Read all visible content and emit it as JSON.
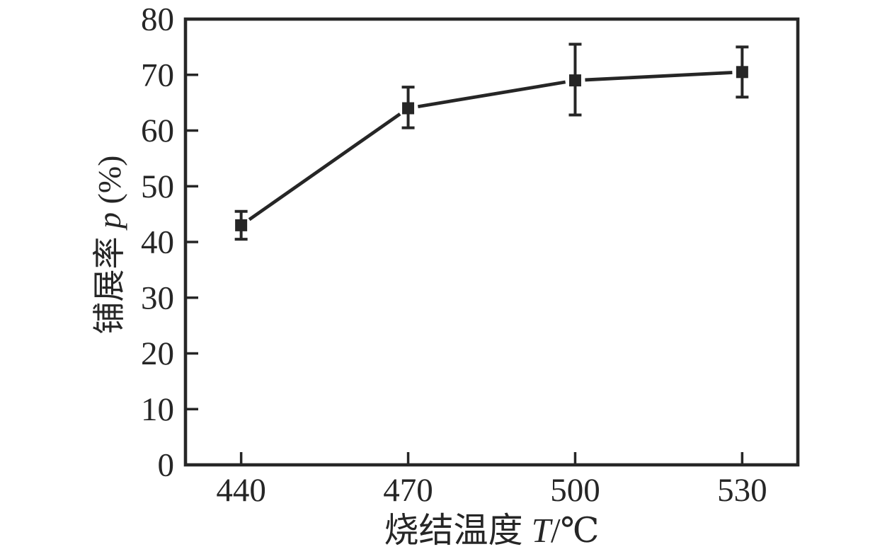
{
  "figure": {
    "background_color": "#ffffff",
    "ink_color": "#262626"
  },
  "chart_data": {
    "type": "line",
    "title": "",
    "xlabel": "烧结温度 T/℃",
    "xlabel_parts": [
      {
        "text": "烧结温度 ",
        "italic": false
      },
      {
        "text": "T",
        "italic": true
      },
      {
        "text": "/℃",
        "italic": false
      }
    ],
    "ylabel": "铺展率 p (%)",
    "ylabel_parts": [
      {
        "text": "铺展率 ",
        "italic": false
      },
      {
        "text": "p",
        "italic": true
      },
      {
        "text": " (%)",
        "italic": false
      }
    ],
    "x": [
      440,
      470,
      500,
      530
    ],
    "y": [
      43,
      64,
      69,
      70.5
    ],
    "y_err_upper": [
      2.5,
      3.8,
      6.5,
      4.5
    ],
    "y_err_lower": [
      2.5,
      3.5,
      6.2,
      4.5
    ],
    "x_ticks": [
      440,
      470,
      500,
      530
    ],
    "y_ticks": [
      0,
      10,
      20,
      30,
      40,
      50,
      60,
      70,
      80
    ],
    "xlim": [
      430,
      540
    ],
    "ylim": [
      0,
      80
    ],
    "grid": false,
    "legend": null,
    "marker": "filled-square",
    "error_bars": true,
    "line_color": "#262626",
    "marker_color": "#262626",
    "tick_direction": "in"
  }
}
